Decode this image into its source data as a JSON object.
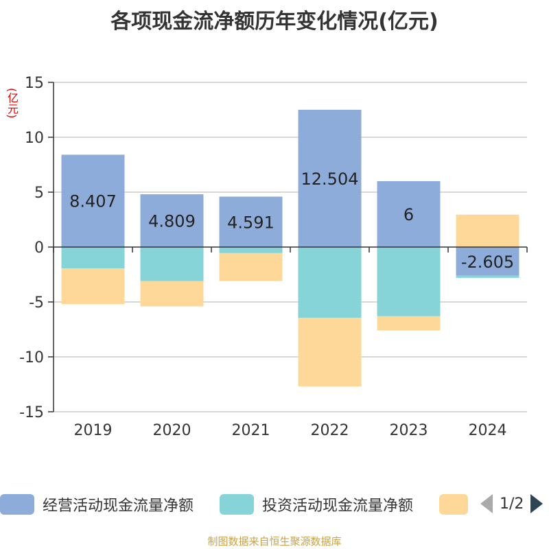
{
  "chart_data": {
    "type": "bar",
    "stacked": true,
    "title": "各项现金流净额历年变化情况(亿元)",
    "ylabel": "(亿元)",
    "categories": [
      "2019",
      "2020",
      "2021",
      "2022",
      "2023",
      "2024"
    ],
    "ylim": [
      -15,
      15
    ],
    "yticks": [
      15,
      10,
      5,
      0,
      -5,
      -10,
      -15
    ],
    "grid": true,
    "series": [
      {
        "name": "经营活动现金流量净额",
        "color": "#8eacd9",
        "values": [
          8.407,
          4.809,
          4.591,
          12.504,
          6,
          -2.605
        ],
        "labels": [
          "8.407",
          "4.809",
          "4.591",
          "12.504",
          "6",
          "-2.605"
        ]
      },
      {
        "name": "投资活动现金流量净额",
        "color": "#86d4d8",
        "values": [
          -1.95,
          -3.1,
          -0.55,
          -6.45,
          -6.3,
          -0.2
        ]
      },
      {
        "name": "",
        "color": "#fed898",
        "values": [
          -3.25,
          -2.3,
          -2.55,
          -6.25,
          -1.3,
          2.95
        ]
      }
    ],
    "legend": {
      "position": "bottom",
      "page_indicator": "1/2"
    },
    "source": "制图数据来自恒生聚源数据库"
  }
}
